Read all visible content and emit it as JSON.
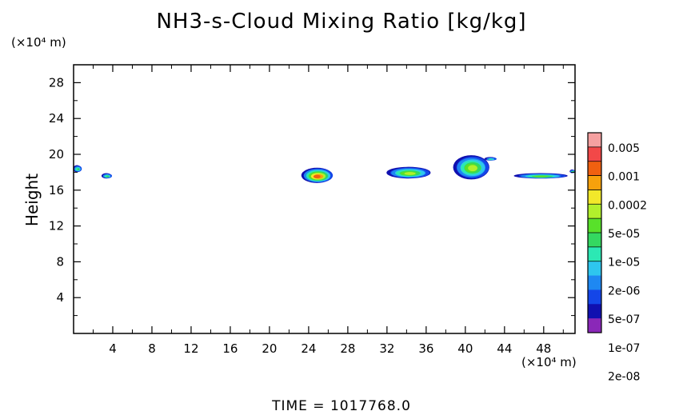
{
  "chart_data": {
    "type": "heatmap",
    "title": "NH3-s-Cloud Mixing Ratio [kg/kg]",
    "ylabel": "Height",
    "y_unit": "(×10⁴ m)",
    "x_unit": "(×10⁴ m)",
    "xlim": [
      0,
      51.2
    ],
    "ylim": [
      0,
      30
    ],
    "xticks": [
      4,
      8,
      12,
      16,
      20,
      24,
      28,
      32,
      36,
      40,
      44,
      48
    ],
    "yticks": [
      4,
      8,
      12,
      16,
      20,
      24,
      28
    ],
    "grid": false,
    "legend_position": "right",
    "colorbar": {
      "labels": [
        "0.005",
        "0.001",
        "0.0002",
        "5e-05",
        "1e-05",
        "2e-06",
        "5e-07",
        "1e-07",
        "2e-08"
      ],
      "colors": [
        "#f5a0a0",
        "#f24848",
        "#f06010",
        "#f7a10c",
        "#f2e82a",
        "#b2f02c",
        "#58e12a",
        "#34d860",
        "#2ce8b4",
        "#2ec6ee",
        "#1e88f2",
        "#1446e8",
        "#1010b0",
        "#8a28b8"
      ]
    },
    "blobs": [
      {
        "x": [
          0.0,
          0.8
        ],
        "y": [
          18.0,
          18.8
        ],
        "level": "5e-07"
      },
      {
        "x": [
          2.9,
          3.9
        ],
        "y": [
          17.3,
          17.9
        ],
        "level": "5e-07"
      },
      {
        "x": [
          23.3,
          26.5
        ],
        "y": [
          16.8,
          18.5
        ],
        "level": "0.001"
      },
      {
        "x": [
          32.0,
          36.5
        ],
        "y": [
          17.3,
          18.6
        ],
        "level": "1e-05"
      },
      {
        "x": [
          38.8,
          42.5
        ],
        "y": [
          17.2,
          19.9
        ],
        "level": "1e-05"
      },
      {
        "x": [
          42.0,
          43.2
        ],
        "y": [
          19.3,
          19.7
        ],
        "level": "1e-07"
      },
      {
        "x": [
          45.0,
          50.5
        ],
        "y": [
          17.3,
          17.9
        ],
        "level": "2e-06"
      },
      {
        "x": [
          50.7,
          51.2
        ],
        "y": [
          17.9,
          18.3
        ],
        "level": "5e-07"
      }
    ]
  },
  "time_label": "TIME = 1017768.0"
}
